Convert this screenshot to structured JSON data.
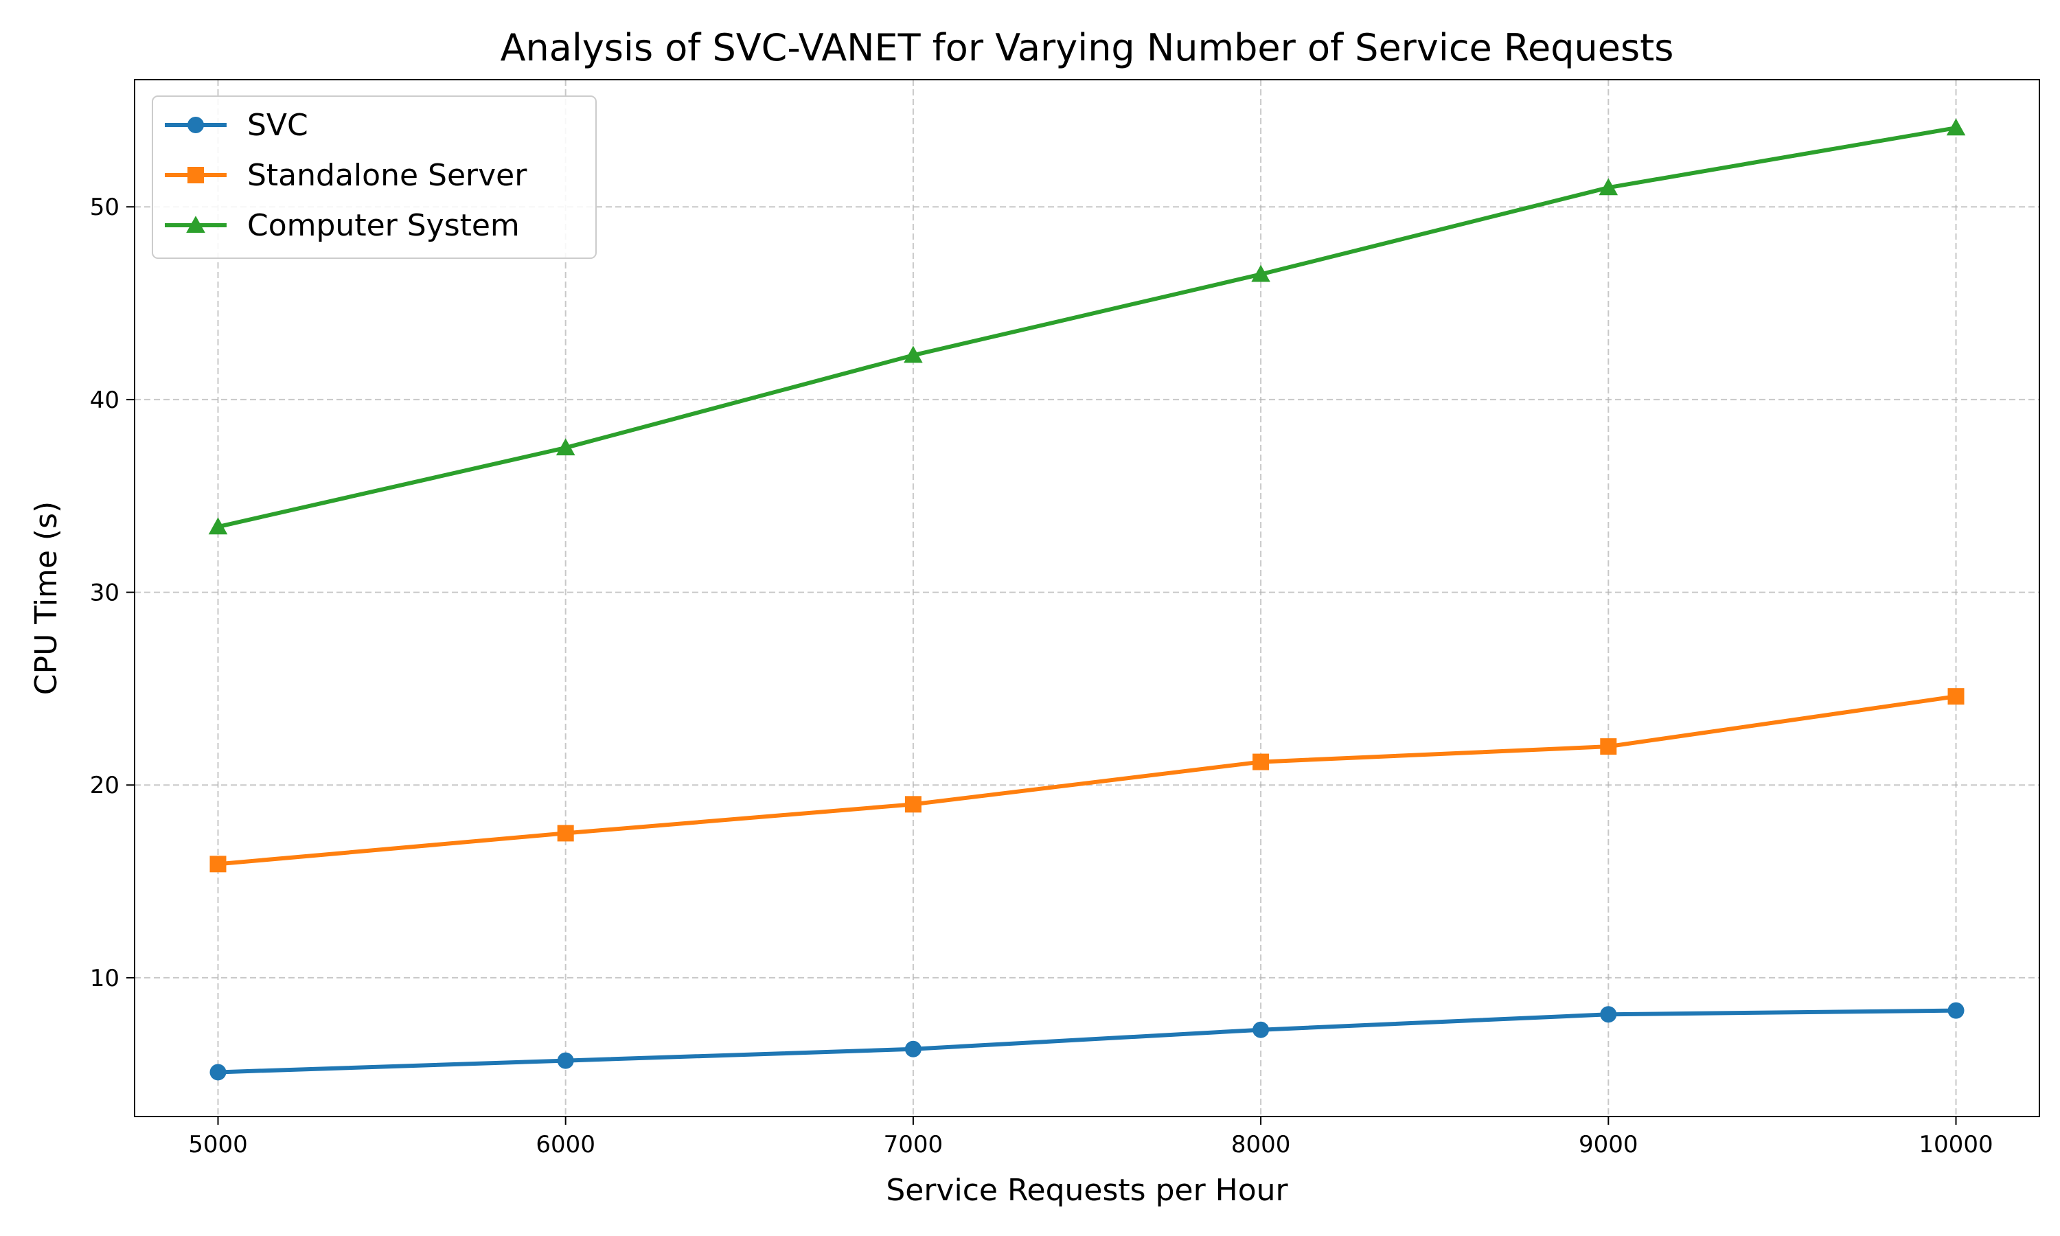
{
  "chart_data": {
    "type": "line",
    "title": "Analysis of SVC-VANET for Varying Number of Service Requests",
    "xlabel": "Service Requests per Hour",
    "ylabel": "CPU Time (s)",
    "x": [
      5000,
      6000,
      7000,
      8000,
      9000,
      10000
    ],
    "xlim": [
      4760,
      10240
    ],
    "ylim": [
      2.8,
      56.6
    ],
    "xticks": [
      5000,
      6000,
      7000,
      8000,
      9000,
      10000
    ],
    "yticks": [
      10,
      20,
      30,
      40,
      50
    ],
    "grid": true,
    "legend_position": "upper-left",
    "series": [
      {
        "name": "SVC",
        "values": [
          5.1,
          5.7,
          6.3,
          7.3,
          8.1,
          8.3
        ],
        "color": "#1f77b4",
        "marker": "circle"
      },
      {
        "name": "Standalone Server",
        "values": [
          15.9,
          17.5,
          19.0,
          21.2,
          22.0,
          24.6
        ],
        "color": "#ff7f0e",
        "marker": "square"
      },
      {
        "name": "Computer System",
        "values": [
          33.4,
          37.5,
          42.3,
          46.5,
          51.0,
          54.1
        ],
        "color": "#2ca02c",
        "marker": "triangle"
      }
    ]
  }
}
